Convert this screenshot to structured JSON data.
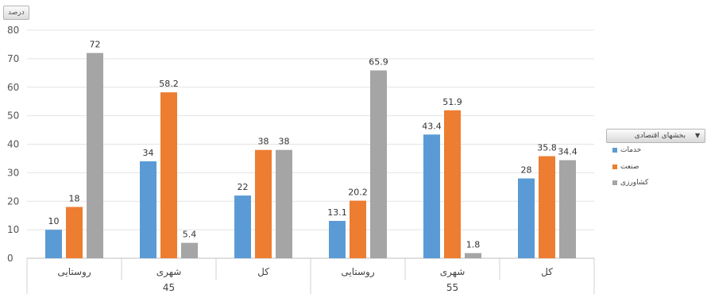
{
  "field_button_label": "درصد",
  "legend": {
    "title": "بخشهای اقتصادی",
    "arrow": "▼"
  },
  "chart_data": {
    "type": "bar",
    "ylim": [
      0,
      80
    ],
    "yticks": [
      0,
      10,
      20,
      30,
      40,
      50,
      60,
      70,
      80
    ],
    "grid": true,
    "legend_position": "right",
    "groups": [
      {
        "label": "45",
        "categories": [
          "روستایی",
          "شهری",
          "کل"
        ]
      },
      {
        "label": "55",
        "categories": [
          "روستایی",
          "شهری",
          "کل"
        ]
      }
    ],
    "categories": [
      "روستایی",
      "شهری",
      "کل",
      "روستایی",
      "شهری",
      "کل"
    ],
    "series": [
      {
        "name": "خدمات",
        "color": "#5b9bd5",
        "values": [
          10,
          34,
          22,
          13.1,
          43.4,
          28
        ]
      },
      {
        "name": "صنعت",
        "color": "#ed7d31",
        "values": [
          18,
          58.2,
          38,
          20.2,
          51.9,
          35.8
        ]
      },
      {
        "name": "کشاورزی",
        "color": "#a5a5a5",
        "values": [
          72,
          5.4,
          38,
          65.9,
          1.8,
          34.4
        ]
      }
    ]
  }
}
